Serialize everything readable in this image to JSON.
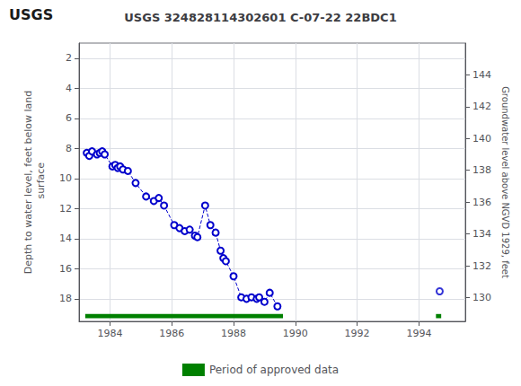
{
  "chart_data": {
    "type": "line",
    "title": "USGS 324828114302601 C-07-22 22BDC1",
    "annotations": [
      "USGS"
    ],
    "ylabel": "Depth to water level, feet below land\n surface",
    "y2label": "Groundwater level above NGVD 1929, feet",
    "xlim": [
      1983.0,
      1995.5
    ],
    "xticks": [
      1984,
      1986,
      1988,
      1990,
      1992,
      1994
    ],
    "ylim": [
      19.5,
      1.0
    ],
    "yticks": [
      2,
      4,
      6,
      8,
      10,
      12,
      14,
      16,
      18
    ],
    "y2lim": [
      128.5,
      146.0
    ],
    "y2ticks": [
      144,
      142,
      140,
      138,
      136,
      134,
      132,
      130
    ],
    "grid": true,
    "legend": "bottom",
    "series": [
      {
        "type": "line",
        "color": "#0000cc",
        "line_style": "dashed",
        "marker": "circle",
        "x": [
          1983.25,
          1983.33,
          1983.42,
          1983.58,
          1983.67,
          1983.75,
          1983.83,
          1984.08,
          1984.17,
          1984.25,
          1984.33,
          1984.42,
          1984.58,
          1984.83,
          1985.17,
          1985.42,
          1985.58,
          1985.75,
          1986.08,
          1986.25,
          1986.42,
          1986.58,
          1986.75,
          1986.83,
          1987.08,
          1987.25,
          1987.42,
          1987.58,
          1987.67,
          1987.75,
          1988.0,
          1988.25,
          1988.42,
          1988.58,
          1988.75,
          1988.83,
          1989.0,
          1989.17,
          1989.42
        ],
        "values": [
          8.3,
          8.5,
          8.2,
          8.4,
          8.3,
          8.2,
          8.4,
          9.2,
          9.1,
          9.3,
          9.2,
          9.4,
          9.5,
          10.3,
          11.2,
          11.5,
          11.3,
          11.8,
          13.1,
          13.3,
          13.5,
          13.4,
          13.8,
          13.9,
          11.8,
          13.1,
          13.6,
          14.8,
          15.3,
          15.5,
          16.5,
          17.9,
          18.0,
          17.9,
          18.0,
          17.9,
          18.2,
          17.6,
          18.5
        ]
      },
      {
        "type": "scatter",
        "color": "#0000cc",
        "marker": "circle",
        "x": [
          1994.67
        ],
        "values": [
          17.5
        ]
      },
      {
        "type": "bar",
        "name": "Period of approved data",
        "color": "#008000",
        "orientation": "horizontal",
        "start": [
          1983.2,
          1994.55
        ],
        "end": [
          1989.6,
          1994.72
        ],
        "y": 19.15,
        "height": 0.28
      }
    ]
  }
}
